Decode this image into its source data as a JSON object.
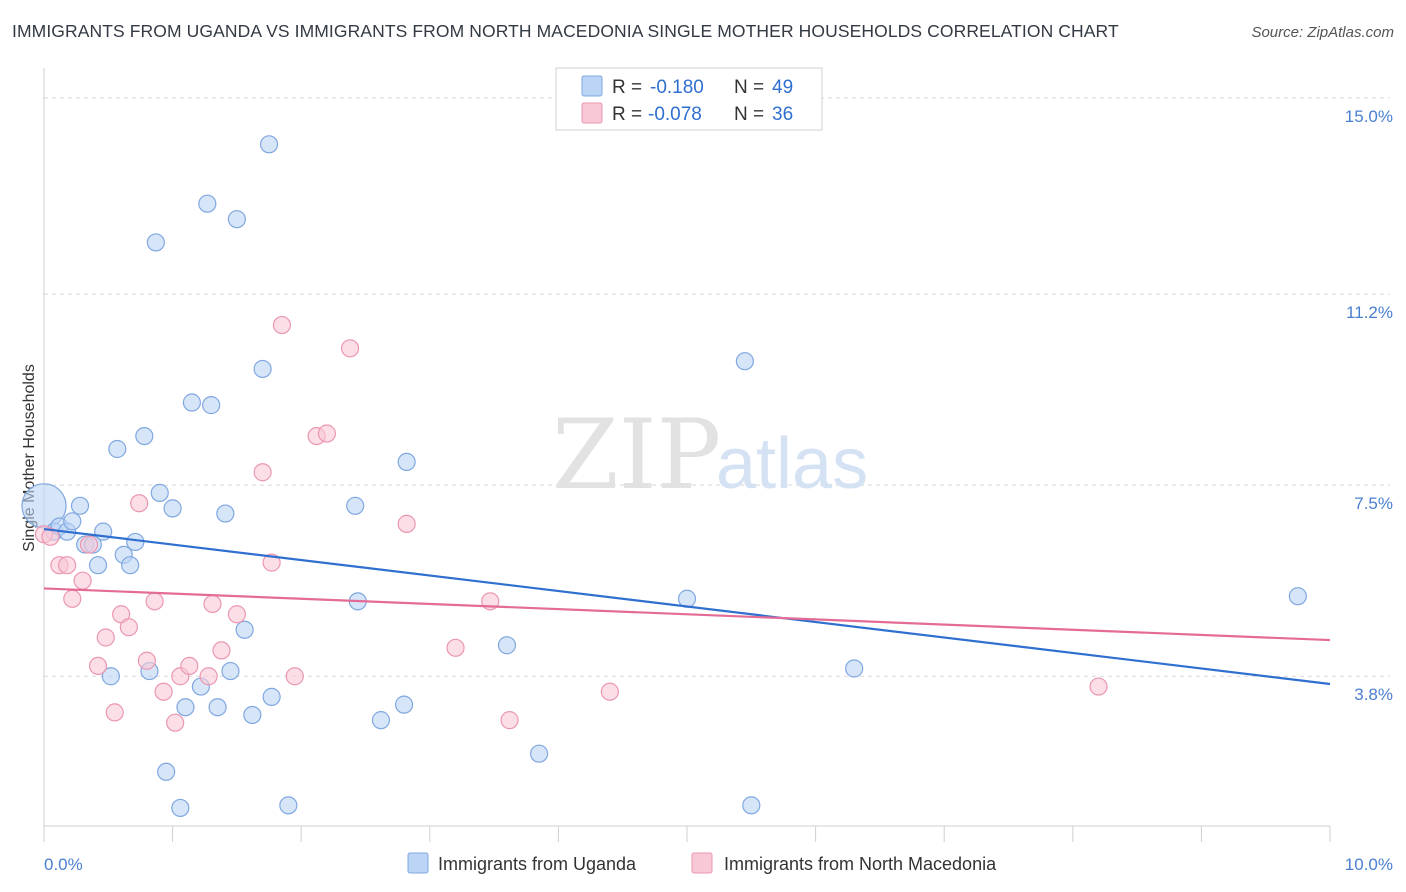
{
  "title": "IMMIGRANTS FROM UGANDA VS IMMIGRANTS FROM NORTH MACEDONIA SINGLE MOTHER HOUSEHOLDS CORRELATION CHART",
  "source": "Source: ZipAtlas.com",
  "watermark": {
    "zip": "ZIP",
    "atlas": "atlas"
  },
  "colors": {
    "uganda_fill": "#bcd4f5",
    "uganda_stroke": "#7fa8e0",
    "uganda_line": "#2f6fd0",
    "macedonia_fill": "#f8c8d6",
    "macedonia_stroke": "#eb97b0",
    "macedonia_line": "#e46b95",
    "grid": "#d8d8d8",
    "tick_label": "#4a7fd0"
  },
  "legend": {
    "r_label": "R =",
    "n_label": "N =",
    "rows": [
      {
        "r": "-0.180",
        "n": "49"
      },
      {
        "r": "-0.078",
        "n": "36"
      }
    ]
  },
  "chart_data": {
    "type": "scatter",
    "title": "IMMIGRANTS FROM UGANDA VS IMMIGRANTS FROM NORTH MACEDONIA SINGLE MOTHER HOUSEHOLDS CORRELATION CHART",
    "xlabel": "",
    "ylabel": "Single Mother Households",
    "xlim": [
      0,
      10
    ],
    "ylim": [
      0.9,
      15.5
    ],
    "x_tick_labels": [
      "0.0%",
      "10.0%"
    ],
    "y_ticks": [
      3.8,
      7.5,
      11.2,
      15.0
    ],
    "y_tick_labels": [
      "3.8%",
      "7.5%",
      "11.2%",
      "15.0%"
    ],
    "grid": true,
    "legend_position": "top-center",
    "series": [
      {
        "name": "Immigrants from Uganda",
        "r": -0.18,
        "n": 49,
        "trend": {
          "x": [
            0,
            10
          ],
          "y": [
            6.65,
            3.65
          ]
        },
        "points": [
          {
            "x": 0.0,
            "y": 7.1,
            "big": true
          },
          {
            "x": 0.08,
            "y": 6.6
          },
          {
            "x": 0.12,
            "y": 6.7
          },
          {
            "x": 0.18,
            "y": 6.6
          },
          {
            "x": 0.22,
            "y": 6.8
          },
          {
            "x": 0.28,
            "y": 7.1
          },
          {
            "x": 0.32,
            "y": 6.35
          },
          {
            "x": 0.38,
            "y": 6.35
          },
          {
            "x": 0.42,
            "y": 5.95
          },
          {
            "x": 0.46,
            "y": 6.6
          },
          {
            "x": 0.52,
            "y": 3.8
          },
          {
            "x": 0.57,
            "y": 8.2
          },
          {
            "x": 0.62,
            "y": 6.15
          },
          {
            "x": 0.67,
            "y": 5.95
          },
          {
            "x": 0.71,
            "y": 6.4
          },
          {
            "x": 0.78,
            "y": 8.45
          },
          {
            "x": 0.82,
            "y": 3.9
          },
          {
            "x": 0.87,
            "y": 12.2
          },
          {
            "x": 0.9,
            "y": 7.35
          },
          {
            "x": 0.95,
            "y": 1.95
          },
          {
            "x": 1.0,
            "y": 7.05
          },
          {
            "x": 1.06,
            "y": 1.25
          },
          {
            "x": 1.1,
            "y": 3.2
          },
          {
            "x": 1.15,
            "y": 9.1
          },
          {
            "x": 1.22,
            "y": 3.6
          },
          {
            "x": 1.27,
            "y": 12.95
          },
          {
            "x": 1.3,
            "y": 9.05
          },
          {
            "x": 1.35,
            "y": 3.2
          },
          {
            "x": 1.41,
            "y": 6.95
          },
          {
            "x": 1.45,
            "y": 3.9
          },
          {
            "x": 1.5,
            "y": 12.65
          },
          {
            "x": 1.56,
            "y": 4.7
          },
          {
            "x": 1.62,
            "y": 3.05
          },
          {
            "x": 1.7,
            "y": 9.75
          },
          {
            "x": 1.77,
            "y": 3.4
          },
          {
            "x": 1.75,
            "y": 14.1
          },
          {
            "x": 1.9,
            "y": 1.3
          },
          {
            "x": 2.42,
            "y": 7.1
          },
          {
            "x": 2.44,
            "y": 5.25
          },
          {
            "x": 2.62,
            "y": 2.95
          },
          {
            "x": 2.8,
            "y": 3.25
          },
          {
            "x": 2.82,
            "y": 7.95
          },
          {
            "x": 3.6,
            "y": 4.4
          },
          {
            "x": 3.85,
            "y": 2.3
          },
          {
            "x": 5.0,
            "y": 5.3
          },
          {
            "x": 5.45,
            "y": 9.9
          },
          {
            "x": 5.5,
            "y": 1.3
          },
          {
            "x": 6.3,
            "y": 3.95
          },
          {
            "x": 9.75,
            "y": 5.35
          }
        ]
      },
      {
        "name": "Immigrants from North Macedonia",
        "r": -0.078,
        "n": 36,
        "trend": {
          "x": [
            0,
            10
          ],
          "y": [
            5.5,
            4.5
          ]
        },
        "points": [
          {
            "x": 0.0,
            "y": 6.55
          },
          {
            "x": 0.05,
            "y": 6.5
          },
          {
            "x": 0.12,
            "y": 5.95
          },
          {
            "x": 0.18,
            "y": 5.95
          },
          {
            "x": 0.22,
            "y": 5.3
          },
          {
            "x": 0.3,
            "y": 5.65
          },
          {
            "x": 0.35,
            "y": 6.35
          },
          {
            "x": 0.42,
            "y": 4.0
          },
          {
            "x": 0.48,
            "y": 4.55
          },
          {
            "x": 0.55,
            "y": 3.1
          },
          {
            "x": 0.6,
            "y": 5.0
          },
          {
            "x": 0.66,
            "y": 4.75
          },
          {
            "x": 0.74,
            "y": 7.15
          },
          {
            "x": 0.8,
            "y": 4.1
          },
          {
            "x": 0.86,
            "y": 5.25
          },
          {
            "x": 0.93,
            "y": 3.5
          },
          {
            "x": 1.02,
            "y": 2.9
          },
          {
            "x": 1.06,
            "y": 3.8
          },
          {
            "x": 1.13,
            "y": 4.0
          },
          {
            "x": 1.28,
            "y": 3.8
          },
          {
            "x": 1.31,
            "y": 5.2
          },
          {
            "x": 1.38,
            "y": 4.3
          },
          {
            "x": 1.5,
            "y": 5.0
          },
          {
            "x": 1.7,
            "y": 7.75
          },
          {
            "x": 1.77,
            "y": 6.0
          },
          {
            "x": 1.85,
            "y": 10.6
          },
          {
            "x": 1.95,
            "y": 3.8
          },
          {
            "x": 2.12,
            "y": 8.45
          },
          {
            "x": 2.2,
            "y": 8.5
          },
          {
            "x": 2.38,
            "y": 10.15
          },
          {
            "x": 2.82,
            "y": 6.75
          },
          {
            "x": 3.2,
            "y": 4.35
          },
          {
            "x": 3.47,
            "y": 5.25
          },
          {
            "x": 3.62,
            "y": 2.95
          },
          {
            "x": 4.4,
            "y": 3.5
          },
          {
            "x": 8.2,
            "y": 3.6
          }
        ]
      }
    ]
  }
}
